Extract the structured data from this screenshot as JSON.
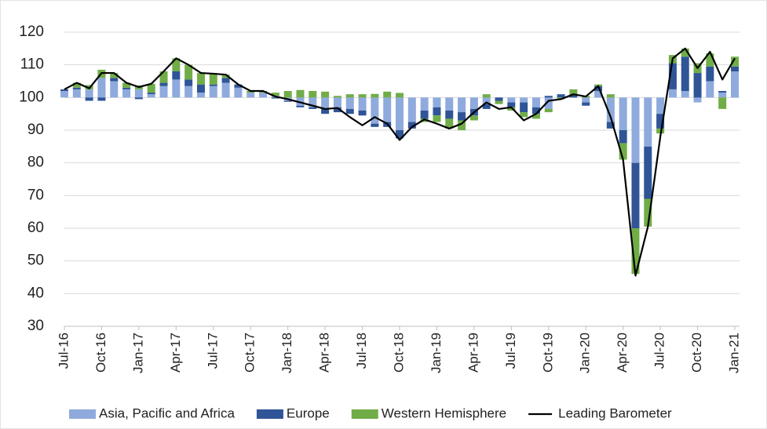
{
  "chart_data": {
    "type": "bar",
    "categories": [
      "Jul-16",
      null,
      null,
      "Oct-16",
      null,
      null,
      "Jan-17",
      null,
      null,
      "Apr-17",
      null,
      null,
      "Jul-17",
      null,
      null,
      "Oct-17",
      null,
      null,
      "Jan-18",
      null,
      null,
      "Apr-18",
      null,
      null,
      "Jul-18",
      null,
      null,
      "Oct-18",
      null,
      null,
      "Jan-19",
      null,
      null,
      "Apr-19",
      null,
      null,
      "Jul-19",
      null,
      null,
      "Oct-19",
      null,
      null,
      "Jan-20",
      null,
      null,
      "Apr-20",
      null,
      null,
      "Jul-20",
      null,
      null,
      "Oct-20",
      null,
      null,
      "Jan-21"
    ],
    "series": [
      {
        "name": "Asia, Pacific and Africa",
        "color": "#8faadc",
        "values": [
          2,
          2.5,
          2.5,
          6,
          5,
          2.5,
          2.5,
          1,
          3.5,
          5.5,
          3.5,
          1.5,
          3.5,
          4.5,
          3,
          1.5,
          1.5,
          0.5,
          -1,
          -2.5,
          -3,
          -3.5,
          -3,
          -3.5,
          -4,
          -8,
          -7.5,
          -10,
          -7.5,
          -4,
          -3,
          -4,
          -4.5,
          -3.5,
          -2,
          0,
          -1.5,
          -1.5,
          -3,
          -3.5,
          0,
          0,
          -1.5,
          2,
          -7.5,
          -10,
          -20,
          -15,
          -5,
          2.5,
          2,
          -1.5,
          5,
          1.5,
          8
        ]
      },
      {
        "name": "Europe",
        "color": "#2f5597",
        "values": [
          0.5,
          0.5,
          -1,
          -1,
          1,
          0.5,
          -0.5,
          0.5,
          1,
          2.5,
          2,
          2.5,
          0.5,
          1.5,
          1,
          0,
          0,
          -0.3,
          -0.3,
          -0.5,
          -0.5,
          -1.5,
          -1.5,
          -1.5,
          -1.5,
          -1,
          -1.5,
          -2.5,
          -2,
          -2.5,
          -2.5,
          -2.5,
          -2.5,
          -2,
          -1.5,
          -1,
          -1.5,
          -3,
          -2,
          0.5,
          1,
          1,
          -1,
          1.5,
          -2,
          -4,
          -20,
          -16,
          -4.5,
          8,
          10.5,
          7.5,
          4.5,
          0.5,
          1.5
        ]
      },
      {
        "name": "Western Hemisphere",
        "color": "#70ad47",
        "values": [
          0,
          1.5,
          1.3,
          2.5,
          1.5,
          1.5,
          1.2,
          2.7,
          3.5,
          4,
          4.5,
          3.5,
          3.3,
          1,
          0,
          0.5,
          0.5,
          1,
          2,
          2.3,
          2,
          1.8,
          0.5,
          1,
          1,
          1.1,
          1.8,
          1.4,
          0,
          -1,
          -2,
          -3,
          -3,
          -1.5,
          1,
          -1,
          -1,
          -1.5,
          -1.5,
          -1,
          -0.5,
          1.5,
          0.5,
          0.5,
          1,
          -5,
          -14,
          -8.5,
          -1.5,
          2.5,
          2.5,
          3,
          4,
          -3.5,
          3
        ]
      },
      {
        "name": "Leading Barometer",
        "type": "line",
        "color": "#000000",
        "values": [
          102.5,
          104.5,
          102.8,
          107.5,
          107.5,
          104.5,
          103.2,
          104.2,
          108,
          112,
          110,
          107.5,
          107.3,
          107,
          104,
          102,
          102,
          100.3,
          99.5,
          98.5,
          97.5,
          96.5,
          96.8,
          94,
          91.5,
          94,
          92,
          87,
          91,
          93.3,
          92,
          90.5,
          92,
          95.5,
          98.5,
          96.5,
          97,
          93,
          95,
          99,
          99.5,
          101,
          100.3,
          103.5,
          94,
          81,
          45.5,
          60.5,
          88,
          112,
          115,
          109,
          114,
          105.5,
          112
        ]
      }
    ],
    "bar_base": 100,
    "ylim": [
      30,
      120
    ],
    "yticks": [
      30,
      40,
      50,
      60,
      70,
      80,
      90,
      100,
      110,
      120
    ],
    "grid": true,
    "legend": "bottom"
  }
}
